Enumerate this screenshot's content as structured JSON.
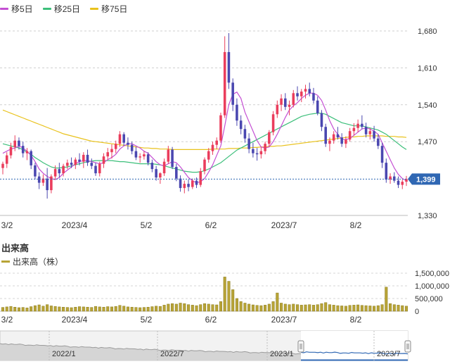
{
  "legend": {
    "ma5": {
      "label": "移5日",
      "color": "#c44fd3"
    },
    "ma25": {
      "label": "移25日",
      "color": "#3cbf7a"
    },
    "ma75": {
      "label": "移75日",
      "color": "#e9c21c"
    }
  },
  "colors": {
    "up": "#ea3d5c",
    "down": "#4a47b0",
    "volume": "#b8a437",
    "volume_edge": "#8c7c1e",
    "current": "#2f67b3"
  },
  "current_price": "1,399",
  "volume_section": {
    "title": "出来高",
    "legend_label": "出来高（株）"
  },
  "navigator_labels": [
    "2022/1",
    "2022/7",
    "2023/1",
    "2023/7"
  ],
  "chart_data": {
    "type": "candlestick",
    "price_axis": {
      "min": 1330,
      "max": 1680,
      "ticks": [
        "1,680",
        "1,610",
        "1,540",
        "1,470",
        "1,330"
      ]
    },
    "x_tick_labels": [
      "3/2",
      "2023/4",
      "5/2",
      "6/2",
      "2023/7",
      "8/2"
    ],
    "volume_axis": {
      "ticks": [
        "1,500,000",
        "1,000,000",
        "500,000",
        "0"
      ]
    },
    "candles": [
      [
        1420,
        1432,
        1408,
        1428,
        150000
      ],
      [
        1428,
        1450,
        1420,
        1444,
        170000
      ],
      [
        1444,
        1468,
        1438,
        1460,
        190000
      ],
      [
        1460,
        1482,
        1452,
        1472,
        160000
      ],
      [
        1472,
        1478,
        1455,
        1462,
        140000
      ],
      [
        1462,
        1470,
        1440,
        1448,
        150000
      ],
      [
        1448,
        1458,
        1435,
        1452,
        130000
      ],
      [
        1452,
        1455,
        1418,
        1425,
        180000
      ],
      [
        1425,
        1430,
        1398,
        1404,
        220000
      ],
      [
        1404,
        1412,
        1380,
        1392,
        250000
      ],
      [
        1392,
        1408,
        1386,
        1400,
        200000
      ],
      [
        1400,
        1420,
        1362,
        1378,
        260000
      ],
      [
        1378,
        1408,
        1372,
        1404,
        210000
      ],
      [
        1404,
        1425,
        1398,
        1418,
        190000
      ],
      [
        1418,
        1430,
        1402,
        1410,
        170000
      ],
      [
        1410,
        1428,
        1404,
        1424,
        160000
      ],
      [
        1424,
        1436,
        1418,
        1430,
        150000
      ],
      [
        1430,
        1440,
        1420,
        1426,
        140000
      ],
      [
        1426,
        1440,
        1418,
        1436,
        160000
      ],
      [
        1436,
        1448,
        1425,
        1432,
        180000
      ],
      [
        1432,
        1450,
        1420,
        1445,
        170000
      ],
      [
        1445,
        1455,
        1424,
        1430,
        160000
      ],
      [
        1430,
        1438,
        1418,
        1424,
        150000
      ],
      [
        1424,
        1430,
        1405,
        1410,
        190000
      ],
      [
        1410,
        1432,
        1404,
        1428,
        170000
      ],
      [
        1428,
        1448,
        1420,
        1442,
        160000
      ],
      [
        1442,
        1458,
        1436,
        1450,
        180000
      ],
      [
        1450,
        1465,
        1438,
        1456,
        170000
      ],
      [
        1456,
        1472,
        1448,
        1466,
        190000
      ],
      [
        1466,
        1490,
        1460,
        1484,
        230000
      ],
      [
        1484,
        1488,
        1462,
        1468,
        200000
      ],
      [
        1468,
        1478,
        1455,
        1464,
        170000
      ],
      [
        1464,
        1470,
        1446,
        1452,
        160000
      ],
      [
        1452,
        1460,
        1435,
        1440,
        150000
      ],
      [
        1440,
        1448,
        1430,
        1442,
        140000
      ],
      [
        1442,
        1452,
        1436,
        1446,
        150000
      ],
      [
        1446,
        1450,
        1425,
        1430,
        160000
      ],
      [
        1430,
        1436,
        1412,
        1418,
        180000
      ],
      [
        1418,
        1424,
        1396,
        1402,
        200000
      ],
      [
        1402,
        1412,
        1390,
        1410,
        190000
      ],
      [
        1410,
        1438,
        1405,
        1432,
        240000
      ],
      [
        1432,
        1462,
        1428,
        1455,
        280000
      ],
      [
        1455,
        1460,
        1418,
        1422,
        300000
      ],
      [
        1422,
        1428,
        1395,
        1400,
        280000
      ],
      [
        1400,
        1406,
        1375,
        1382,
        320000
      ],
      [
        1382,
        1396,
        1372,
        1390,
        300000
      ],
      [
        1390,
        1398,
        1376,
        1384,
        260000
      ],
      [
        1384,
        1400,
        1380,
        1396,
        240000
      ],
      [
        1396,
        1402,
        1382,
        1388,
        220000
      ],
      [
        1388,
        1420,
        1384,
        1414,
        260000
      ],
      [
        1414,
        1440,
        1408,
        1436,
        300000
      ],
      [
        1436,
        1458,
        1430,
        1452,
        280000
      ],
      [
        1452,
        1470,
        1445,
        1464,
        260000
      ],
      [
        1464,
        1478,
        1456,
        1472,
        250000
      ],
      [
        1472,
        1525,
        1468,
        1520,
        380000
      ],
      [
        1520,
        1670,
        1515,
        1640,
        1350000
      ],
      [
        1640,
        1676,
        1570,
        1582,
        1180000
      ],
      [
        1582,
        1590,
        1528,
        1540,
        850000
      ],
      [
        1540,
        1552,
        1500,
        1510,
        500000
      ],
      [
        1510,
        1520,
        1484,
        1494,
        380000
      ],
      [
        1494,
        1502,
        1468,
        1476,
        320000
      ],
      [
        1476,
        1486,
        1448,
        1456,
        280000
      ],
      [
        1456,
        1468,
        1440,
        1448,
        250000
      ],
      [
        1448,
        1458,
        1434,
        1446,
        230000
      ],
      [
        1446,
        1460,
        1438,
        1452,
        220000
      ],
      [
        1452,
        1470,
        1446,
        1466,
        240000
      ],
      [
        1466,
        1492,
        1460,
        1488,
        280000
      ],
      [
        1488,
        1528,
        1482,
        1522,
        380000
      ],
      [
        1522,
        1548,
        1515,
        1540,
        720000
      ],
      [
        1540,
        1560,
        1528,
        1552,
        320000
      ],
      [
        1552,
        1562,
        1530,
        1536,
        280000
      ],
      [
        1536,
        1548,
        1520,
        1540,
        260000
      ],
      [
        1540,
        1568,
        1535,
        1562,
        280000
      ],
      [
        1562,
        1575,
        1548,
        1556,
        260000
      ],
      [
        1556,
        1570,
        1545,
        1565,
        240000
      ],
      [
        1565,
        1578,
        1552,
        1570,
        250000
      ],
      [
        1570,
        1582,
        1556,
        1562,
        260000
      ],
      [
        1562,
        1572,
        1542,
        1548,
        240000
      ],
      [
        1548,
        1556,
        1520,
        1524,
        260000
      ],
      [
        1524,
        1530,
        1490,
        1498,
        300000
      ],
      [
        1498,
        1504,
        1460,
        1466,
        340000
      ],
      [
        1466,
        1478,
        1452,
        1472,
        260000
      ],
      [
        1472,
        1490,
        1466,
        1484,
        240000
      ],
      [
        1484,
        1498,
        1474,
        1478,
        220000
      ],
      [
        1478,
        1486,
        1460,
        1466,
        210000
      ],
      [
        1466,
        1480,
        1458,
        1474,
        200000
      ],
      [
        1474,
        1496,
        1470,
        1490,
        230000
      ],
      [
        1490,
        1505,
        1482,
        1496,
        240000
      ],
      [
        1496,
        1512,
        1488,
        1504,
        250000
      ],
      [
        1504,
        1520,
        1494,
        1498,
        230000
      ],
      [
        1498,
        1506,
        1478,
        1484,
        220000
      ],
      [
        1484,
        1496,
        1474,
        1490,
        210000
      ],
      [
        1490,
        1500,
        1470,
        1476,
        200000
      ],
      [
        1476,
        1484,
        1456,
        1462,
        220000
      ],
      [
        1462,
        1468,
        1420,
        1430,
        260000
      ],
      [
        1430,
        1438,
        1392,
        1398,
        950000
      ],
      [
        1398,
        1410,
        1390,
        1404,
        300000
      ],
      [
        1404,
        1412,
        1392,
        1396,
        260000
      ],
      [
        1396,
        1404,
        1382,
        1388,
        240000
      ],
      [
        1388,
        1398,
        1380,
        1394,
        220000
      ],
      [
        1394,
        1405,
        1386,
        1399,
        200000
      ]
    ],
    "ma5": [
      1448,
      1452,
      1456,
      1458,
      1462,
      1458,
      1452,
      1444,
      1432,
      1418,
      1410,
      1404,
      1400,
      1398,
      1402,
      1410,
      1416,
      1422,
      1428,
      1432,
      1434,
      1434,
      1432,
      1430,
      1428,
      1430,
      1436,
      1440,
      1446,
      1456,
      1462,
      1466,
      1466,
      1462,
      1458,
      1452,
      1448,
      1440,
      1432,
      1426,
      1424,
      1428,
      1432,
      1430,
      1422,
      1412,
      1402,
      1396,
      1392,
      1394,
      1400,
      1412,
      1426,
      1444,
      1462,
      1500,
      1540,
      1560,
      1564,
      1552,
      1526,
      1508,
      1490,
      1472,
      1460,
      1458,
      1460,
      1470,
      1484,
      1500,
      1516,
      1530,
      1538,
      1544,
      1552,
      1558,
      1562,
      1562,
      1558,
      1548,
      1530,
      1510,
      1494,
      1484,
      1474,
      1474,
      1476,
      1482,
      1488,
      1494,
      1496,
      1494,
      1490,
      1484,
      1468,
      1452,
      1436,
      1420,
      1408,
      1400,
      1396
    ],
    "ma25": [
      1466,
      1464,
      1462,
      1460,
      1458,
      1455,
      1450,
      1446,
      1440,
      1435,
      1430,
      1426,
      1422,
      1420,
      1420,
      1421,
      1422,
      1424,
      1426,
      1428,
      1430,
      1432,
      1433,
      1434,
      1434,
      1434,
      1434,
      1434,
      1433,
      1432,
      1432,
      1431,
      1430,
      1429,
      1428,
      1428,
      1428,
      1428,
      1427,
      1426,
      1424,
      1422,
      1420,
      1418,
      1416,
      1414,
      1413,
      1412,
      1412,
      1413,
      1415,
      1418,
      1422,
      1426,
      1430,
      1436,
      1442,
      1448,
      1454,
      1458,
      1462,
      1466,
      1470,
      1474,
      1478,
      1482,
      1486,
      1490,
      1494,
      1498,
      1502,
      1506,
      1510,
      1514,
      1518,
      1520,
      1522,
      1523,
      1524,
      1524,
      1522,
      1518,
      1514,
      1510,
      1506,
      1504,
      1502,
      1500,
      1500,
      1500,
      1498,
      1496,
      1494,
      1492,
      1488,
      1484,
      1478,
      1472,
      1466,
      1460,
      1455
    ],
    "ma75": [
      1530,
      1527,
      1524,
      1521,
      1518,
      1515,
      1512,
      1509,
      1506,
      1503,
      1500,
      1497,
      1494,
      1491,
      1488,
      1485,
      1483,
      1481,
      1479,
      1477,
      1475,
      1473,
      1471,
      1470,
      1469,
      1468,
      1467,
      1466,
      1465,
      1464,
      1463,
      1462,
      1461,
      1460,
      1459,
      1458,
      1458,
      1457,
      1457,
      1456,
      1456,
      1456,
      1455,
      1455,
      1455,
      1455,
      1455,
      1455,
      1455,
      1455,
      1455,
      1455,
      1456,
      1456,
      1456,
      1456,
      1457,
      1457,
      1457,
      1458,
      1458,
      1458,
      1459,
      1459,
      1460,
      1460,
      1461,
      1461,
      1462,
      1462,
      1463,
      1464,
      1465,
      1466,
      1467,
      1468,
      1469,
      1470,
      1471,
      1472,
      1473,
      1474,
      1475,
      1476,
      1477,
      1478,
      1479,
      1479,
      1480,
      1480,
      1481,
      1481,
      1481,
      1481,
      1481,
      1480,
      1480,
      1480,
      1479,
      1479,
      1478
    ]
  }
}
